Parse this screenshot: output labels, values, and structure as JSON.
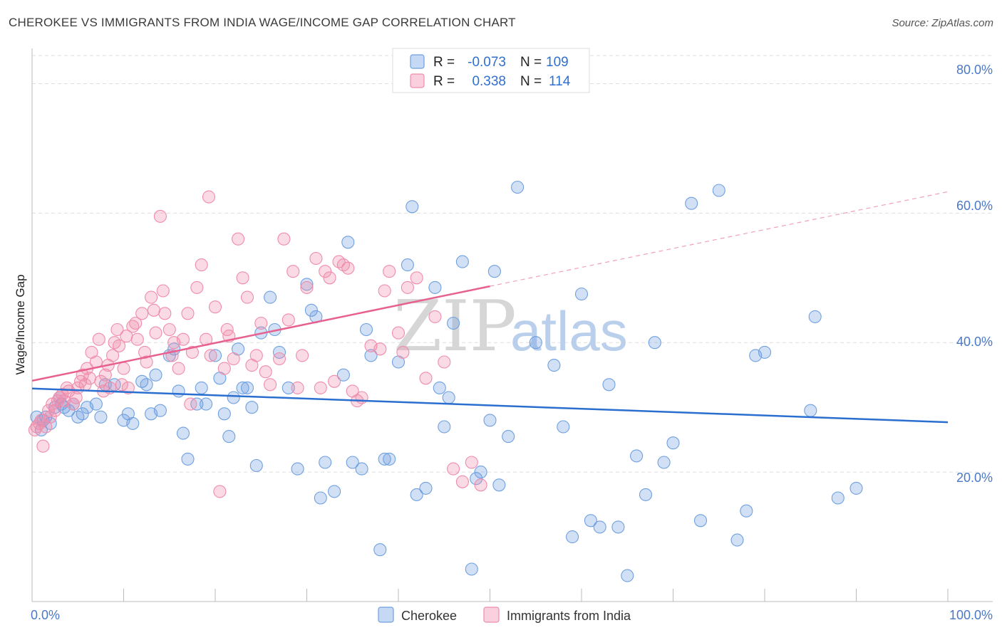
{
  "title": "CHEROKEE VS IMMIGRANTS FROM INDIA WAGE/INCOME GAP CORRELATION CHART",
  "source": "Source: ZipAtlas.com",
  "watermark": {
    "part1": "ZIP",
    "part2": "atlas"
  },
  "legend_top": [
    {
      "r_label": "R =",
      "r_value": "-0.073",
      "n_label": "N =",
      "n_value": "109"
    },
    {
      "r_label": "R =",
      "r_value": "0.338",
      "n_label": "N =",
      "n_value": "114"
    }
  ],
  "legend_bottom": [
    "Cherokee",
    "Immigrants from India"
  ],
  "colors": {
    "cherokee": "#6fa0e0",
    "india": "#f08cab",
    "cherokee_line": "#2a6fd0",
    "india_line": "#e8618e",
    "tick": "#4a78c8"
  },
  "chart_data": {
    "type": "scatter",
    "title": "CHEROKEE VS IMMIGRANTS FROM INDIA WAGE/INCOME GAP CORRELATION CHART",
    "xlabel": "",
    "ylabel": "Wage/Income Gap",
    "xlim": [
      0,
      100
    ],
    "ylim": [
      0,
      85
    ],
    "x_tick_labels": [
      "0.0%",
      "100.0%"
    ],
    "y_ticks": [
      20,
      40,
      60,
      80
    ],
    "y_tick_labels": [
      "20.0%",
      "40.0%",
      "60.0%",
      "80.0%"
    ],
    "series": [
      {
        "name": "Cherokee",
        "r": -0.073,
        "n": 109,
        "trend": {
          "x": [
            0,
            100
          ],
          "y": [
            32.9,
            27.7
          ]
        },
        "points": [
          [
            0.5,
            28.5
          ],
          [
            1,
            26.5
          ],
          [
            1.2,
            28
          ],
          [
            1.5,
            28.5
          ],
          [
            2,
            27.5
          ],
          [
            2.5,
            30
          ],
          [
            3,
            31.5
          ],
          [
            3.2,
            30.5
          ],
          [
            3.5,
            30
          ],
          [
            4,
            29.5
          ],
          [
            4.5,
            30.5
          ],
          [
            5,
            28.5
          ],
          [
            5.5,
            29
          ],
          [
            6,
            30
          ],
          [
            7,
            30.5
          ],
          [
            7.5,
            28.5
          ],
          [
            8,
            33.5
          ],
          [
            9,
            33.5
          ],
          [
            10,
            28
          ],
          [
            10.5,
            29
          ],
          [
            11,
            27.5
          ],
          [
            12,
            34
          ],
          [
            12.5,
            33.5
          ],
          [
            13,
            29
          ],
          [
            13.5,
            35
          ],
          [
            14,
            29.5
          ],
          [
            15,
            38
          ],
          [
            15.5,
            39
          ],
          [
            16,
            32.5
          ],
          [
            16.5,
            26
          ],
          [
            17,
            22
          ],
          [
            18,
            30.5
          ],
          [
            18.5,
            33
          ],
          [
            19,
            30.5
          ],
          [
            20,
            38
          ],
          [
            20.5,
            34.5
          ],
          [
            21,
            29
          ],
          [
            21.5,
            25.5
          ],
          [
            22,
            31.5
          ],
          [
            22.5,
            39
          ],
          [
            23,
            33
          ],
          [
            23.5,
            33
          ],
          [
            24,
            30
          ],
          [
            24.5,
            21
          ],
          [
            25,
            41.5
          ],
          [
            26,
            47
          ],
          [
            26.5,
            42
          ],
          [
            27,
            38.5
          ],
          [
            28,
            33
          ],
          [
            29,
            20.5
          ],
          [
            30,
            49
          ],
          [
            30.5,
            45
          ],
          [
            31,
            44
          ],
          [
            31.5,
            16
          ],
          [
            32,
            21.5
          ],
          [
            33,
            17
          ],
          [
            34,
            35
          ],
          [
            34.5,
            55.5
          ],
          [
            35,
            21.5
          ],
          [
            36,
            20.5
          ],
          [
            36.5,
            42
          ],
          [
            37,
            38
          ],
          [
            38,
            8
          ],
          [
            38.5,
            22
          ],
          [
            39,
            22
          ],
          [
            40,
            37
          ],
          [
            41,
            52
          ],
          [
            41.5,
            61
          ],
          [
            42,
            16.5
          ],
          [
            43,
            17.5
          ],
          [
            44,
            48.5
          ],
          [
            44.5,
            33
          ],
          [
            45,
            27
          ],
          [
            45.5,
            31.5
          ],
          [
            46,
            43
          ],
          [
            47,
            52.5
          ],
          [
            48,
            5
          ],
          [
            48.5,
            19
          ],
          [
            49,
            20
          ],
          [
            50,
            28
          ],
          [
            50.5,
            51
          ],
          [
            51,
            18
          ],
          [
            52,
            25.5
          ],
          [
            53,
            64
          ],
          [
            55,
            40
          ],
          [
            57,
            36.5
          ],
          [
            58,
            27
          ],
          [
            59,
            10
          ],
          [
            60,
            47.5
          ],
          [
            61,
            12.5
          ],
          [
            62,
            11.5
          ],
          [
            63,
            33.5
          ],
          [
            64,
            11.5
          ],
          [
            65,
            4
          ],
          [
            66,
            22.5
          ],
          [
            67,
            16.5
          ],
          [
            68,
            40
          ],
          [
            69,
            21.5
          ],
          [
            70,
            24.5
          ],
          [
            72,
            61.5
          ],
          [
            73,
            12.5
          ],
          [
            75,
            63.5
          ],
          [
            77,
            9.5
          ],
          [
            78,
            14
          ],
          [
            79,
            38
          ],
          [
            80,
            38.5
          ],
          [
            85,
            29.5
          ],
          [
            85.5,
            44
          ],
          [
            88,
            16
          ],
          [
            90,
            17.5
          ]
        ]
      },
      {
        "name": "Immigrants from India",
        "r": 0.338,
        "n": 114,
        "trend": {
          "x": [
            0,
            50
          ],
          "y": [
            34.1,
            48.7
          ]
        },
        "trend_extension": {
          "x": [
            50,
            100
          ],
          "y": [
            48.7,
            63.3
          ]
        },
        "points": [
          [
            0.3,
            26.5
          ],
          [
            0.5,
            27
          ],
          [
            0.8,
            27.5
          ],
          [
            1,
            28
          ],
          [
            1.2,
            24
          ],
          [
            1.5,
            27
          ],
          [
            1.8,
            29.5
          ],
          [
            2,
            28.5
          ],
          [
            2.2,
            30.5
          ],
          [
            2.5,
            29.5
          ],
          [
            2.8,
            31
          ],
          [
            3,
            31.5
          ],
          [
            3.3,
            32
          ],
          [
            3.5,
            31
          ],
          [
            3.8,
            33
          ],
          [
            4,
            32.5
          ],
          [
            4.5,
            30.5
          ],
          [
            4.8,
            31.5
          ],
          [
            5,
            33
          ],
          [
            5.3,
            34
          ],
          [
            5.5,
            35
          ],
          [
            5.8,
            33.5
          ],
          [
            6,
            36
          ],
          [
            6.3,
            34.5
          ],
          [
            6.5,
            38.5
          ],
          [
            7,
            37
          ],
          [
            7.3,
            40.5
          ],
          [
            7.5,
            34
          ],
          [
            7.8,
            32.5
          ],
          [
            8,
            35
          ],
          [
            8.3,
            36.5
          ],
          [
            8.5,
            33
          ],
          [
            8.8,
            38
          ],
          [
            9,
            40
          ],
          [
            9.3,
            42
          ],
          [
            9.5,
            39.5
          ],
          [
            9.8,
            33.5
          ],
          [
            10,
            36
          ],
          [
            10.3,
            41
          ],
          [
            10.5,
            33
          ],
          [
            11,
            42.5
          ],
          [
            11.3,
            43
          ],
          [
            11.5,
            40.5
          ],
          [
            12,
            44.5
          ],
          [
            12.3,
            38.5
          ],
          [
            12.5,
            37
          ],
          [
            13,
            47
          ],
          [
            13.3,
            45
          ],
          [
            13.5,
            41.5
          ],
          [
            14,
            59.5
          ],
          [
            14.3,
            48
          ],
          [
            14.5,
            44.5
          ],
          [
            15,
            42
          ],
          [
            15.3,
            38
          ],
          [
            15.5,
            40
          ],
          [
            16,
            36
          ],
          [
            16.5,
            40.5
          ],
          [
            17,
            44.5
          ],
          [
            17.3,
            30.5
          ],
          [
            17.5,
            38.5
          ],
          [
            18,
            48.5
          ],
          [
            18.5,
            52
          ],
          [
            19,
            40.5
          ],
          [
            19.3,
            62.5
          ],
          [
            19.5,
            38
          ],
          [
            20,
            45.5
          ],
          [
            20.5,
            17
          ],
          [
            21,
            36
          ],
          [
            21.3,
            42
          ],
          [
            21.5,
            41
          ],
          [
            22,
            37.5
          ],
          [
            22.5,
            56
          ],
          [
            23,
            50
          ],
          [
            23.5,
            47
          ],
          [
            24,
            36.5
          ],
          [
            24.5,
            38
          ],
          [
            25,
            43
          ],
          [
            25.5,
            35.5
          ],
          [
            26,
            33.5
          ],
          [
            27,
            37.5
          ],
          [
            27.5,
            56
          ],
          [
            28,
            43.5
          ],
          [
            28.5,
            51
          ],
          [
            29,
            33
          ],
          [
            29.5,
            38
          ],
          [
            30,
            48.5
          ],
          [
            31,
            53
          ],
          [
            31.5,
            33
          ],
          [
            32,
            51
          ],
          [
            32.5,
            50
          ],
          [
            33,
            34
          ],
          [
            33.5,
            52.5
          ],
          [
            34,
            52
          ],
          [
            34.5,
            51.5
          ],
          [
            35,
            32.5
          ],
          [
            35.5,
            31
          ],
          [
            36,
            31.5
          ],
          [
            37,
            39.5
          ],
          [
            38,
            39
          ],
          [
            38.5,
            48
          ],
          [
            39,
            51
          ],
          [
            40,
            41.5
          ],
          [
            40.5,
            38.5
          ],
          [
            41,
            48.5
          ],
          [
            42,
            50
          ],
          [
            43,
            34.5
          ],
          [
            44,
            44
          ],
          [
            45,
            37
          ],
          [
            46,
            20.5
          ],
          [
            47,
            18.5
          ],
          [
            48,
            21.5
          ],
          [
            49,
            18
          ]
        ]
      }
    ]
  }
}
